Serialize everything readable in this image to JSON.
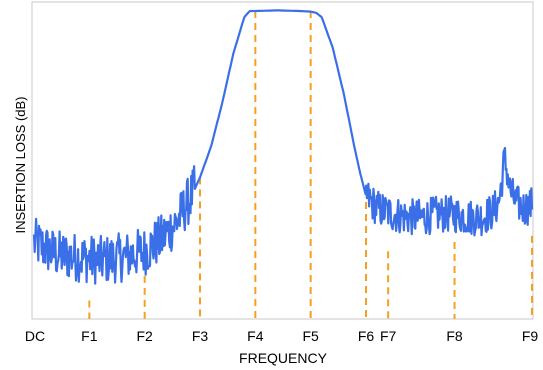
{
  "chart_data": {
    "type": "line",
    "title": "",
    "xlabel": "FREQUENCY",
    "ylabel": "INSERTION LOSS (dB)",
    "x_ticks": [
      "DC",
      "F1",
      "F2",
      "F3",
      "F4",
      "F5",
      "F6",
      "F7",
      "F8",
      "F9"
    ],
    "marker_color": "#f5a020",
    "series": [
      {
        "color": "#3b6fe8",
        "x": [
          0.0,
          0.4,
          0.8,
          1.2,
          1.6,
          2.0,
          2.3,
          2.6,
          2.9,
          3.0,
          3.2,
          3.4,
          3.6,
          3.8,
          3.9,
          4.0,
          4.2,
          4.4,
          4.6,
          4.8,
          5.0,
          5.1,
          5.2,
          5.4,
          5.6,
          5.8,
          5.9,
          6.0,
          6.2,
          6.5,
          6.8,
          7.0,
          7.3,
          7.6,
          7.9,
          8.1,
          8.3,
          8.4,
          8.45,
          8.5,
          8.55,
          8.6,
          8.7,
          8.85,
          9.0
        ],
        "y": [
          25,
          21,
          20,
          19,
          20,
          22,
          26,
          32,
          42,
          46,
          56,
          70,
          86,
          98,
          100,
          100,
          100.1,
          100.2,
          100.1,
          100,
          99.8,
          99.4,
          98,
          88,
          73,
          55,
          47,
          40,
          36,
          34,
          33,
          33,
          34,
          34,
          33,
          33,
          35,
          38,
          44,
          52,
          48,
          42,
          38,
          36,
          37
        ]
      }
    ],
    "markers": [
      {
        "x": 1,
        "y": 6
      },
      {
        "x": 2,
        "y": 14
      },
      {
        "x": 3,
        "y": 46
      },
      {
        "x": 4,
        "y": 100
      },
      {
        "x": 5,
        "y": 100
      },
      {
        "x": 6,
        "y": 38
      },
      {
        "x": 6.4,
        "y": 22
      },
      {
        "x": 7.6,
        "y": 25
      },
      {
        "x": 9,
        "y": 27
      }
    ],
    "xlim": [
      0,
      9
    ],
    "ylim": [
      0,
      100
    ]
  }
}
